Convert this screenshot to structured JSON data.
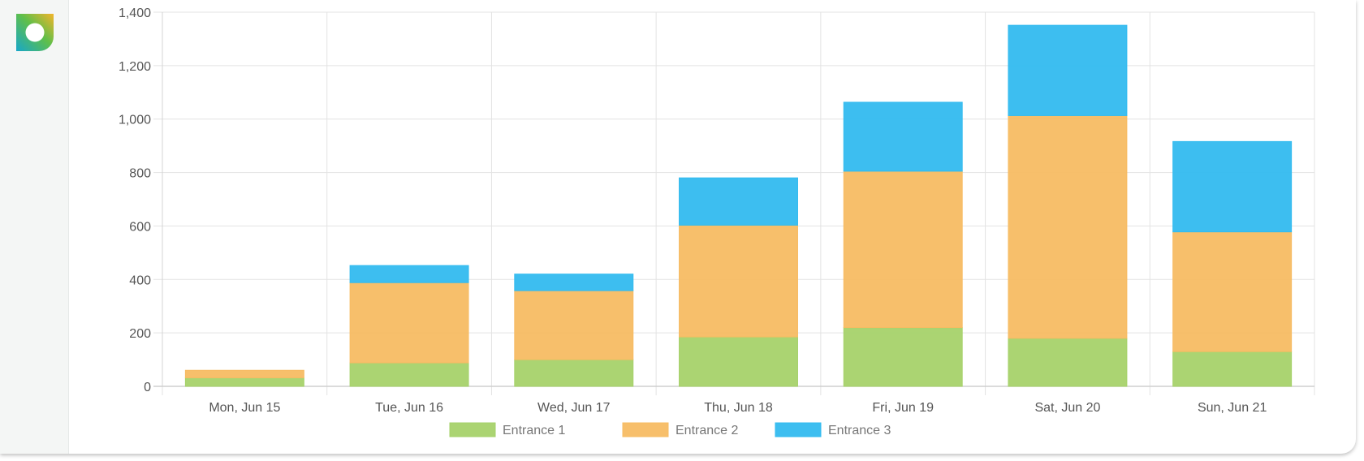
{
  "app": {
    "logo_icon": "app-logo-icon"
  },
  "chart_data": {
    "type": "bar",
    "stacked": true,
    "categories": [
      "Mon, Jun 15",
      "Tue, Jun 16",
      "Wed, Jun 17",
      "Thu, Jun 18",
      "Fri, Jun 19",
      "Sat, Jun 20",
      "Sun, Jun 21"
    ],
    "series": [
      {
        "name": "Entrance 1",
        "color": "#a6d26a",
        "values": [
          32,
          88,
          100,
          185,
          220,
          180,
          130
        ]
      },
      {
        "name": "Entrance 2",
        "color": "#f7bc63",
        "values": [
          28,
          300,
          258,
          418,
          585,
          833,
          448
        ]
      },
      {
        "name": "Entrance 3",
        "color": "#33bbef",
        "values": [
          0,
          64,
          62,
          177,
          258,
          338,
          338
        ]
      }
    ],
    "ylim": [
      0,
      1400
    ],
    "yticks": [
      0,
      200,
      400,
      600,
      800,
      1000,
      1200,
      1400
    ],
    "ytick_labels": [
      "0",
      "200",
      "400",
      "600",
      "800",
      "1,000",
      "1,200",
      "1,400"
    ],
    "title": "",
    "xlabel": "",
    "ylabel": "",
    "grid": true,
    "legend_position": "bottom"
  }
}
